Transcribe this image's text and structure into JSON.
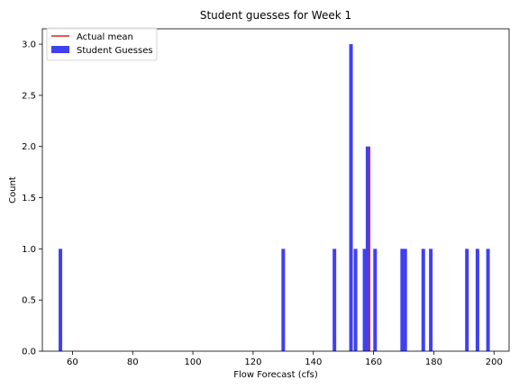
{
  "chart_data": {
    "type": "bar",
    "title": "Student guesses for Week 1",
    "xlabel": "Flow Forecast (cfs)",
    "ylabel": "Count",
    "xlim": [
      50,
      205
    ],
    "ylim": [
      0,
      3.15
    ],
    "xticks": [
      60,
      80,
      100,
      120,
      140,
      160,
      180,
      200
    ],
    "yticks": [
      0.0,
      0.5,
      1.0,
      1.5,
      2.0,
      2.5,
      3.0
    ],
    "xtick_labels": [
      "60",
      "80",
      "100",
      "120",
      "140",
      "160",
      "180",
      "200"
    ],
    "ytick_labels": [
      "0.0",
      "0.5",
      "1.0",
      "1.5",
      "2.0",
      "2.5",
      "3.0"
    ],
    "grid": false,
    "legend_position": "top-left",
    "series": [
      {
        "name": "Student Guesses",
        "type": "histogram",
        "color": "#4040f0",
        "bin_width": 1.2,
        "bins": [
          {
            "x": 56,
            "count": 1
          },
          {
            "x": 130,
            "count": 1
          },
          {
            "x": 147,
            "count": 1
          },
          {
            "x": 152.5,
            "count": 3
          },
          {
            "x": 154,
            "count": 1
          },
          {
            "x": 157,
            "count": 1
          },
          {
            "x": 158,
            "count": 2
          },
          {
            "x": 160.5,
            "count": 1
          },
          {
            "x": 169.5,
            "count": 1
          },
          {
            "x": 170.5,
            "count": 1
          },
          {
            "x": 176.5,
            "count": 1
          },
          {
            "x": 179,
            "count": 1
          },
          {
            "x": 191,
            "count": 1
          },
          {
            "x": 194.5,
            "count": 1
          },
          {
            "x": 198,
            "count": 1
          }
        ]
      },
      {
        "name": "Actual mean",
        "type": "vline",
        "color": "#e02020",
        "x": 158.7,
        "y_range": [
          0,
          2
        ]
      }
    ]
  }
}
